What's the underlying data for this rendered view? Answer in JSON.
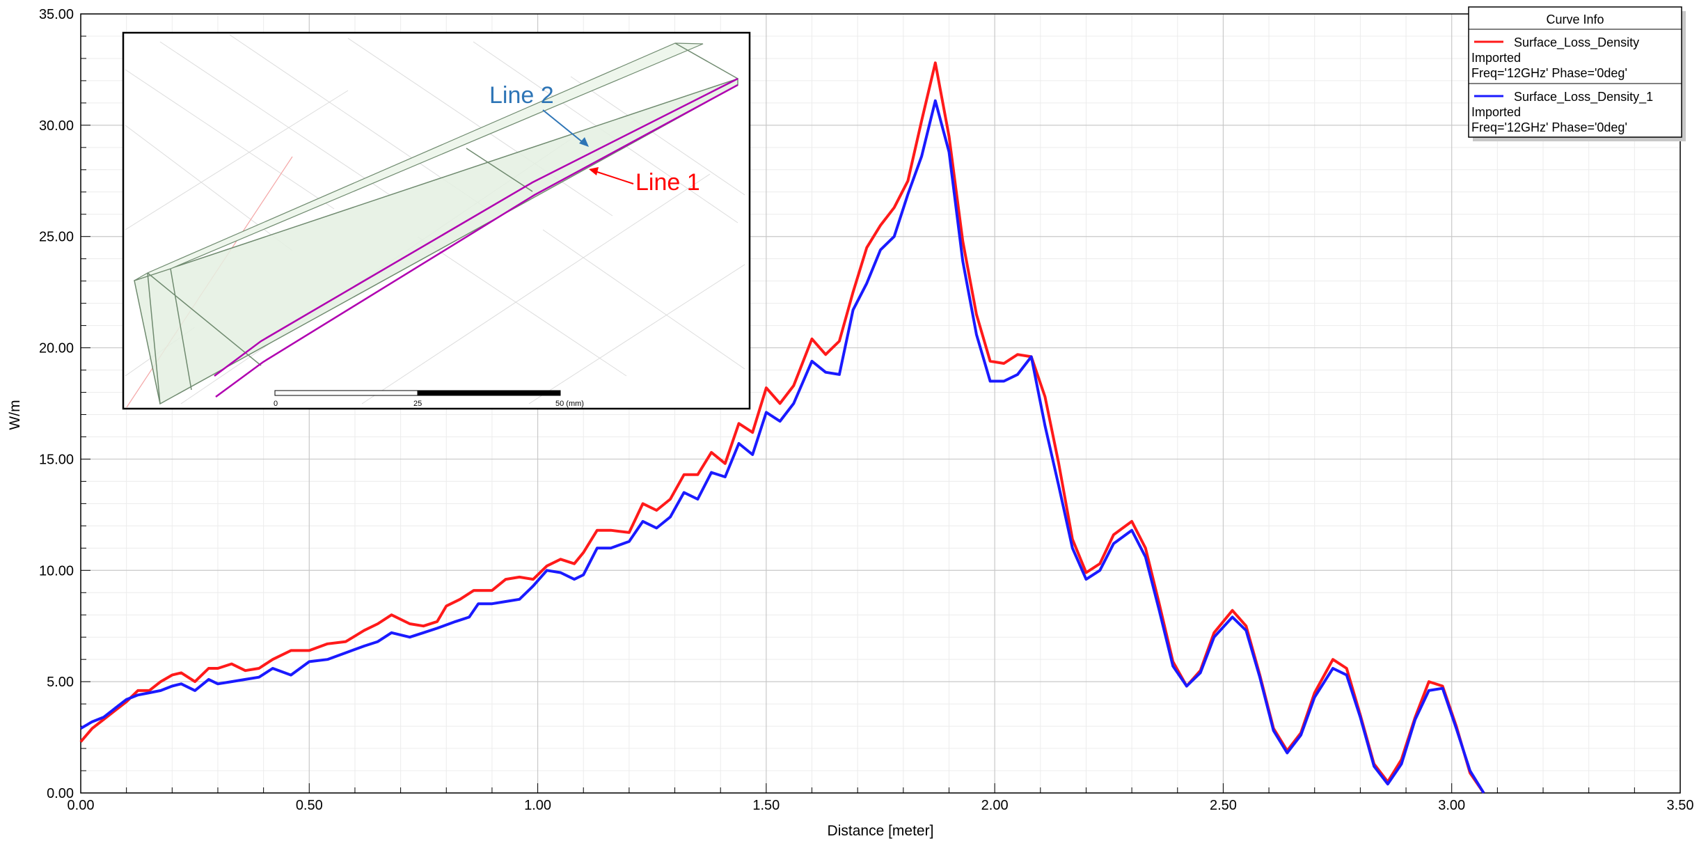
{
  "chart_data": {
    "type": "line",
    "title": "",
    "xlabel": "Distance [meter]",
    "ylabel": "W/m",
    "xlim": [
      0,
      3.5
    ],
    "ylim": [
      0,
      35
    ],
    "x_ticks": [
      "0.00",
      "0.50",
      "1.00",
      "1.50",
      "2.00",
      "2.50",
      "3.00",
      "3.50"
    ],
    "y_ticks": [
      "0.00",
      "5.00",
      "10.00",
      "15.00",
      "20.00",
      "25.00",
      "30.00",
      "35.00"
    ],
    "grid": true,
    "legend_position": "top-right",
    "legend": {
      "header": "Curve Info",
      "entries": [
        {
          "name": "Surface_Loss_Density",
          "line2": "Imported",
          "line3": "Freq='12GHz' Phase='0deg'",
          "color": "#ff1a1a"
        },
        {
          "name": "Surface_Loss_Density_1",
          "line2": "Imported",
          "line3": "Freq='12GHz' Phase='0deg'",
          "color": "#1a1aff"
        }
      ]
    },
    "series": [
      {
        "name": "Surface_Loss_Density",
        "color": "#ff1a1a",
        "points": [
          [
            0.0,
            2.3
          ],
          [
            0.025,
            2.9
          ],
          [
            0.05,
            3.3
          ],
          [
            0.075,
            3.7
          ],
          [
            0.1,
            4.1
          ],
          [
            0.125,
            4.6
          ],
          [
            0.15,
            4.6
          ],
          [
            0.175,
            5.0
          ],
          [
            0.2,
            5.3
          ],
          [
            0.22,
            5.4
          ],
          [
            0.25,
            5.0
          ],
          [
            0.28,
            5.6
          ],
          [
            0.3,
            5.6
          ],
          [
            0.33,
            5.8
          ],
          [
            0.36,
            5.5
          ],
          [
            0.39,
            5.6
          ],
          [
            0.42,
            6.0
          ],
          [
            0.46,
            6.4
          ],
          [
            0.5,
            6.4
          ],
          [
            0.54,
            6.7
          ],
          [
            0.58,
            6.8
          ],
          [
            0.62,
            7.3
          ],
          [
            0.65,
            7.6
          ],
          [
            0.68,
            8.0
          ],
          [
            0.72,
            7.6
          ],
          [
            0.75,
            7.5
          ],
          [
            0.78,
            7.7
          ],
          [
            0.8,
            8.4
          ],
          [
            0.83,
            8.7
          ],
          [
            0.86,
            9.1
          ],
          [
            0.9,
            9.1
          ],
          [
            0.93,
            9.6
          ],
          [
            0.96,
            9.7
          ],
          [
            0.99,
            9.6
          ],
          [
            1.02,
            10.2
          ],
          [
            1.05,
            10.5
          ],
          [
            1.08,
            10.3
          ],
          [
            1.1,
            10.8
          ],
          [
            1.13,
            11.8
          ],
          [
            1.16,
            11.8
          ],
          [
            1.2,
            11.7
          ],
          [
            1.23,
            13.0
          ],
          [
            1.26,
            12.7
          ],
          [
            1.29,
            13.2
          ],
          [
            1.32,
            14.3
          ],
          [
            1.35,
            14.3
          ],
          [
            1.38,
            15.3
          ],
          [
            1.41,
            14.8
          ],
          [
            1.44,
            16.6
          ],
          [
            1.47,
            16.2
          ],
          [
            1.5,
            18.2
          ],
          [
            1.53,
            17.5
          ],
          [
            1.56,
            18.3
          ],
          [
            1.6,
            20.4
          ],
          [
            1.63,
            19.7
          ],
          [
            1.66,
            20.3
          ],
          [
            1.69,
            22.5
          ],
          [
            1.72,
            24.5
          ],
          [
            1.75,
            25.5
          ],
          [
            1.78,
            26.3
          ],
          [
            1.81,
            27.5
          ],
          [
            1.84,
            30.2
          ],
          [
            1.87,
            32.8
          ],
          [
            1.9,
            29.5
          ],
          [
            1.93,
            24.8
          ],
          [
            1.96,
            21.5
          ],
          [
            1.99,
            19.4
          ],
          [
            2.02,
            19.3
          ],
          [
            2.05,
            19.7
          ],
          [
            2.08,
            19.6
          ],
          [
            2.11,
            17.8
          ],
          [
            2.14,
            14.8
          ],
          [
            2.17,
            11.4
          ],
          [
            2.2,
            9.9
          ],
          [
            2.23,
            10.3
          ],
          [
            2.26,
            11.6
          ],
          [
            2.3,
            12.2
          ],
          [
            2.33,
            11.0
          ],
          [
            2.36,
            8.5
          ],
          [
            2.39,
            5.9
          ],
          [
            2.42,
            4.8
          ],
          [
            2.45,
            5.5
          ],
          [
            2.48,
            7.2
          ],
          [
            2.52,
            8.2
          ],
          [
            2.55,
            7.5
          ],
          [
            2.58,
            5.3
          ],
          [
            2.61,
            2.9
          ],
          [
            2.64,
            1.9
          ],
          [
            2.67,
            2.7
          ],
          [
            2.7,
            4.5
          ],
          [
            2.74,
            6.0
          ],
          [
            2.77,
            5.6
          ],
          [
            2.8,
            3.5
          ],
          [
            2.83,
            1.3
          ],
          [
            2.86,
            0.5
          ],
          [
            2.89,
            1.5
          ],
          [
            2.92,
            3.4
          ],
          [
            2.95,
            5.0
          ],
          [
            2.98,
            4.8
          ],
          [
            3.01,
            3.0
          ],
          [
            3.04,
            0.9
          ],
          [
            3.07,
            0.0
          ]
        ]
      },
      {
        "name": "Surface_Loss_Density_1",
        "color": "#1a1aff",
        "points": [
          [
            0.0,
            2.9
          ],
          [
            0.025,
            3.2
          ],
          [
            0.05,
            3.4
          ],
          [
            0.075,
            3.8
          ],
          [
            0.1,
            4.2
          ],
          [
            0.125,
            4.4
          ],
          [
            0.15,
            4.5
          ],
          [
            0.175,
            4.6
          ],
          [
            0.2,
            4.8
          ],
          [
            0.22,
            4.9
          ],
          [
            0.25,
            4.6
          ],
          [
            0.28,
            5.1
          ],
          [
            0.3,
            4.9
          ],
          [
            0.33,
            5.0
          ],
          [
            0.36,
            5.1
          ],
          [
            0.39,
            5.2
          ],
          [
            0.42,
            5.6
          ],
          [
            0.46,
            5.3
          ],
          [
            0.5,
            5.9
          ],
          [
            0.54,
            6.0
          ],
          [
            0.58,
            6.3
          ],
          [
            0.62,
            6.6
          ],
          [
            0.65,
            6.8
          ],
          [
            0.68,
            7.2
          ],
          [
            0.72,
            7.0
          ],
          [
            0.75,
            7.2
          ],
          [
            0.78,
            7.4
          ],
          [
            0.82,
            7.7
          ],
          [
            0.85,
            7.9
          ],
          [
            0.87,
            8.5
          ],
          [
            0.9,
            8.5
          ],
          [
            0.93,
            8.6
          ],
          [
            0.96,
            8.7
          ],
          [
            0.99,
            9.3
          ],
          [
            1.02,
            10.0
          ],
          [
            1.05,
            9.9
          ],
          [
            1.08,
            9.6
          ],
          [
            1.1,
            9.8
          ],
          [
            1.13,
            11.0
          ],
          [
            1.16,
            11.0
          ],
          [
            1.2,
            11.3
          ],
          [
            1.23,
            12.2
          ],
          [
            1.26,
            11.9
          ],
          [
            1.29,
            12.4
          ],
          [
            1.32,
            13.5
          ],
          [
            1.35,
            13.2
          ],
          [
            1.38,
            14.4
          ],
          [
            1.41,
            14.2
          ],
          [
            1.44,
            15.7
          ],
          [
            1.47,
            15.2
          ],
          [
            1.5,
            17.1
          ],
          [
            1.53,
            16.7
          ],
          [
            1.56,
            17.5
          ],
          [
            1.6,
            19.4
          ],
          [
            1.63,
            18.9
          ],
          [
            1.66,
            18.8
          ],
          [
            1.69,
            21.7
          ],
          [
            1.72,
            22.9
          ],
          [
            1.75,
            24.4
          ],
          [
            1.78,
            25.0
          ],
          [
            1.81,
            26.9
          ],
          [
            1.84,
            28.6
          ],
          [
            1.87,
            31.1
          ],
          [
            1.9,
            28.8
          ],
          [
            1.93,
            23.9
          ],
          [
            1.96,
            20.6
          ],
          [
            1.99,
            18.5
          ],
          [
            2.02,
            18.5
          ],
          [
            2.05,
            18.8
          ],
          [
            2.08,
            19.6
          ],
          [
            2.11,
            16.5
          ],
          [
            2.14,
            13.8
          ],
          [
            2.17,
            11.0
          ],
          [
            2.2,
            9.6
          ],
          [
            2.23,
            10.0
          ],
          [
            2.26,
            11.2
          ],
          [
            2.3,
            11.8
          ],
          [
            2.33,
            10.6
          ],
          [
            2.36,
            8.2
          ],
          [
            2.39,
            5.7
          ],
          [
            2.42,
            4.8
          ],
          [
            2.45,
            5.4
          ],
          [
            2.48,
            7.0
          ],
          [
            2.52,
            7.9
          ],
          [
            2.55,
            7.3
          ],
          [
            2.58,
            5.2
          ],
          [
            2.61,
            2.8
          ],
          [
            2.64,
            1.8
          ],
          [
            2.67,
            2.6
          ],
          [
            2.7,
            4.3
          ],
          [
            2.74,
            5.6
          ],
          [
            2.77,
            5.3
          ],
          [
            2.8,
            3.4
          ],
          [
            2.83,
            1.2
          ],
          [
            2.86,
            0.4
          ],
          [
            2.89,
            1.3
          ],
          [
            2.92,
            3.3
          ],
          [
            2.95,
            4.6
          ],
          [
            2.98,
            4.7
          ],
          [
            3.01,
            2.9
          ],
          [
            3.04,
            1.0
          ],
          [
            3.07,
            0.0
          ]
        ]
      }
    ],
    "inset": {
      "line2_label": "Line 2",
      "line2_color": "#2e75b6",
      "line1_label": "Line 1",
      "line1_color": "#ff0000",
      "scale_labels": [
        "0",
        "25",
        "50 (mm)"
      ]
    }
  }
}
